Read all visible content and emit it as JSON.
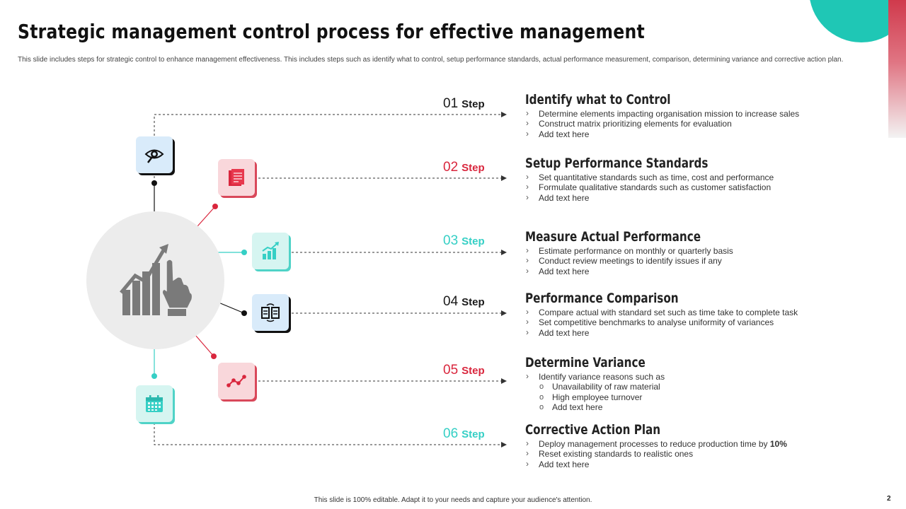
{
  "title": "Strategic management control process for effective management",
  "subtitle": "This slide includes steps for strategic control to enhance management effectiveness. This includes steps such as identify what to control, setup performance standards, actual performance measurement, comparison, determining variance and corrective action plan.",
  "steps": [
    {
      "num": "01",
      "word": "Step",
      "title": "Identify what to Control",
      "icon": "eye-icon",
      "bullets": [
        "Determine elements impacting organisation mission to increase sales",
        "Construct matrix prioritizing elements for evaluation",
        "Add text here"
      ]
    },
    {
      "num": "02",
      "word": "Step",
      "title": "Setup Performance Standards",
      "icon": "document-icon",
      "bullets": [
        "Set quantitative standards such as time, cost and performance",
        "Formulate qualitative standards such as customer satisfaction",
        "Add text here"
      ]
    },
    {
      "num": "03",
      "word": "Step",
      "title": "Measure Actual Performance",
      "icon": "growth-chart-icon",
      "bullets": [
        "Estimate performance on monthly or quarterly basis",
        "Conduct review meetings to identify issues if any",
        "Add text here"
      ]
    },
    {
      "num": "04",
      "word": "Step",
      "title": "Performance Comparison",
      "icon": "compare-icon",
      "bullets": [
        "Compare actual with standard set such as time take to complete task",
        "Set competitive benchmarks to analyse uniformity of variances",
        "Add text here"
      ]
    },
    {
      "num": "05",
      "word": "Step",
      "title": "Determine Variance",
      "icon": "line-graph-icon",
      "bullets": [
        "Identify variance reasons such as"
      ],
      "sub_bullets": [
        "Unavailability of raw material",
        "High employee turnover",
        "Add text here"
      ]
    },
    {
      "num": "06",
      "word": "Step",
      "title": "Corrective Action Plan",
      "icon": "calendar-icon",
      "bullets": [
        "Deploy management processes to reduce production time by",
        "Reset existing standards to realistic ones",
        "Add text here"
      ],
      "emphasis": "10%"
    }
  ],
  "hub_icon": "growth-hand-icon",
  "footer": "This slide is 100% editable.  Adapt it to your needs and capture your audience's attention.",
  "page_number": "2",
  "colors": {
    "dark": "#1a1a1a",
    "red": "#d9263d",
    "teal": "#35cfc5",
    "accent_teal": "#1fc7b5"
  }
}
